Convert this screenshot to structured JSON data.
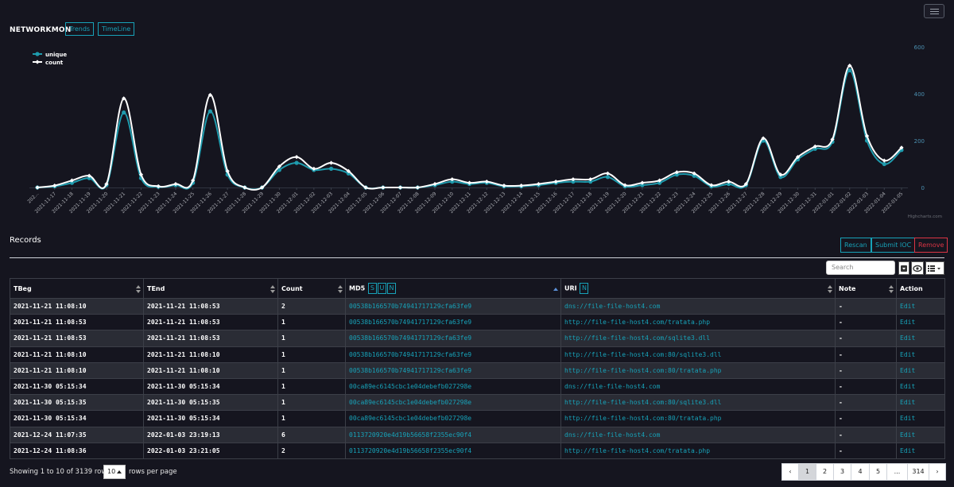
{
  "header": {
    "brand": "NETWORKMON",
    "nav": [
      {
        "label": "Trends"
      },
      {
        "label": "TimeLine"
      }
    ]
  },
  "chart_data": {
    "type": "line",
    "legend": {
      "position": "top-left",
      "items": [
        "unique",
        "count"
      ]
    },
    "x": [
      "202...",
      "2021-11-17",
      "2021-11-18",
      "2021-11-19",
      "2021-11-20",
      "2021-11-21",
      "2021-11-22",
      "2021-11-23",
      "2021-11-24",
      "2021-11-25",
      "2021-11-26",
      "2021-11-27",
      "2021-11-28",
      "2021-11-29",
      "2021-11-30",
      "2021-12-01",
      "2021-12-02",
      "2021-12-03",
      "2021-12-04",
      "2021-12-05",
      "2021-12-06",
      "2021-12-07",
      "2021-12-08",
      "2021-12-09",
      "2021-12-10",
      "2021-12-11",
      "2021-12-12",
      "2021-12-13",
      "2021-12-14",
      "2021-12-15",
      "2021-12-16",
      "2021-12-17",
      "2021-12-18",
      "2021-12-19",
      "2021-12-20",
      "2021-12-21",
      "2021-12-22",
      "2021-12-23",
      "2021-12-24",
      "2021-12-25",
      "2021-12-26",
      "2021-12-27",
      "2021-12-28",
      "2021-12-29",
      "2021-12-30",
      "2021-12-31",
      "2022-01-01",
      "2022-01-02",
      "2022-01-03",
      "2022-01-04",
      "2022-01-05"
    ],
    "series": [
      {
        "name": "unique",
        "color": "#1f9bad",
        "values": [
          0,
          5,
          20,
          40,
          10,
          320,
          40,
          3,
          10,
          20,
          325,
          55,
          0,
          0,
          75,
          105,
          75,
          80,
          60,
          0,
          0,
          0,
          0,
          10,
          25,
          15,
          20,
          5,
          5,
          10,
          20,
          25,
          25,
          45,
          5,
          10,
          20,
          55,
          50,
          5,
          15,
          10,
          200,
          45,
          120,
          165,
          195,
          500,
          200,
          100,
          160
        ]
      },
      {
        "name": "count",
        "color": "#ffffff",
        "values": [
          0,
          8,
          30,
          50,
          15,
          380,
          55,
          5,
          15,
          30,
          395,
          70,
          0,
          0,
          90,
          130,
          80,
          105,
          70,
          0,
          0,
          0,
          0,
          15,
          35,
          20,
          25,
          8,
          8,
          15,
          25,
          35,
          35,
          60,
          10,
          20,
          30,
          65,
          60,
          10,
          25,
          15,
          210,
          55,
          130,
          175,
          205,
          520,
          220,
          115,
          170
        ]
      }
    ],
    "yaxis": {
      "position": "right",
      "ticks": [
        0,
        200,
        400,
        600
      ],
      "ylim": [
        0,
        600
      ]
    },
    "credit": "Highcharts.com"
  },
  "records": {
    "title": "Records",
    "buttons": {
      "rescan": "Rescan",
      "submit_ioc": "Submit IOC",
      "remove": "Remove"
    },
    "search_placeholder": "Search",
    "columns": {
      "tbeg": "TBeg",
      "tend": "TEnd",
      "count": "Count",
      "md5": "MD5",
      "md5_buttons": [
        "S",
        "U",
        "N"
      ],
      "uri": "URI",
      "uri_buttons": [
        "N"
      ],
      "note": "Note",
      "action": "Action"
    },
    "rows": [
      {
        "tbeg": "2021-11-21 11:08:10",
        "tend": "2021-11-21 11:08:53",
        "count": "2",
        "md5": "00538b166570b74941717129cfa63fe9",
        "uri": "dns://file-file-host4.com",
        "note": "-",
        "action": "Edit"
      },
      {
        "tbeg": "2021-11-21 11:08:53",
        "tend": "2021-11-21 11:08:53",
        "count": "1",
        "md5": "00538b166570b74941717129cfa63fe9",
        "uri": "http://file-file-host4.com/tratata.php",
        "note": "-",
        "action": "Edit"
      },
      {
        "tbeg": "2021-11-21 11:08:53",
        "tend": "2021-11-21 11:08:53",
        "count": "1",
        "md5": "00538b166570b74941717129cfa63fe9",
        "uri": "http://file-file-host4.com/sqlite3.dll",
        "note": "-",
        "action": "Edit"
      },
      {
        "tbeg": "2021-11-21 11:08:10",
        "tend": "2021-11-21 11:08:10",
        "count": "1",
        "md5": "00538b166570b74941717129cfa63fe9",
        "uri": "http://file-file-host4.com:80/sqlite3.dll",
        "note": "-",
        "action": "Edit"
      },
      {
        "tbeg": "2021-11-21 11:08:10",
        "tend": "2021-11-21 11:08:10",
        "count": "1",
        "md5": "00538b166570b74941717129cfa63fe9",
        "uri": "http://file-file-host4.com:80/tratata.php",
        "note": "-",
        "action": "Edit"
      },
      {
        "tbeg": "2021-11-30 05:15:34",
        "tend": "2021-11-30 05:15:34",
        "count": "1",
        "md5": "00ca89ec6145cbc1e04debefb027298e",
        "uri": "dns://file-file-host4.com",
        "note": "-",
        "action": "Edit"
      },
      {
        "tbeg": "2021-11-30 05:15:35",
        "tend": "2021-11-30 05:15:35",
        "count": "1",
        "md5": "00ca89ec6145cbc1e04debefb027298e",
        "uri": "http://file-file-host4.com:80/sqlite3.dll",
        "note": "-",
        "action": "Edit"
      },
      {
        "tbeg": "2021-11-30 05:15:34",
        "tend": "2021-11-30 05:15:34",
        "count": "1",
        "md5": "00ca89ec6145cbc1e04debefb027298e",
        "uri": "http://file-file-host4.com:80/tratata.php",
        "note": "-",
        "action": "Edit"
      },
      {
        "tbeg": "2021-12-24 11:07:35",
        "tend": "2022-01-03 23:19:13",
        "count": "6",
        "md5": "0113720920e4d19b56658f2355ec90f4",
        "uri": "dns://file-file-host4.com",
        "note": "-",
        "action": "Edit"
      },
      {
        "tbeg": "2021-12-24 11:08:36",
        "tend": "2022-01-03 23:21:05",
        "count": "2",
        "md5": "0113720920e4d19b56658f2355ec90f4",
        "uri": "http://file-file-host4.com/tratata.php",
        "note": "-",
        "action": "Edit"
      }
    ]
  },
  "footer": {
    "showing": "Showing 1 to 10 of 3139 rows",
    "page_size": "10",
    "rows_per_page": "rows per page",
    "pager": [
      "‹",
      "1",
      "2",
      "3",
      "4",
      "5",
      "...",
      "314",
      "›"
    ]
  },
  "icons": {
    "menu": "hamburger-icon",
    "toggle": "eye-toggle-icon",
    "columns": "list-columns-icon",
    "dropdown": "caret-down-icon"
  }
}
